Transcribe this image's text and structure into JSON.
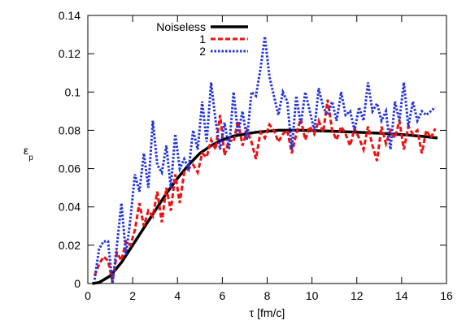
{
  "chart_data": {
    "type": "line",
    "title": "",
    "xlabel": "τ [fm/c]",
    "ylabel": "ε",
    "ylabel_subscript": "p",
    "xlim": [
      0,
      16
    ],
    "ylim": [
      0,
      0.14
    ],
    "xticks": [
      "0",
      "2",
      "4",
      "6",
      "8",
      "10",
      "12",
      "14",
      "16"
    ],
    "yticks": [
      "0",
      "0.02",
      "0.04",
      "0.06",
      "0.08",
      "0.1",
      "0.12",
      "0.14"
    ],
    "grid": false,
    "legend_position": "top-left",
    "series": [
      {
        "name": "Noiseless",
        "color": "#000000",
        "style": "solid",
        "x": [
          0.2,
          0.5,
          1.0,
          1.5,
          2.0,
          2.5,
          3.0,
          3.5,
          4.0,
          4.5,
          5.0,
          5.5,
          6.0,
          6.5,
          7.0,
          7.5,
          8.0,
          8.5,
          9.0,
          9.5,
          10.0,
          11.0,
          12.0,
          13.0,
          14.0,
          15.0,
          15.6
        ],
        "y": [
          0.0,
          0.0005,
          0.004,
          0.011,
          0.02,
          0.029,
          0.038,
          0.047,
          0.055,
          0.062,
          0.068,
          0.072,
          0.075,
          0.077,
          0.078,
          0.079,
          0.0795,
          0.08,
          0.08,
          0.08,
          0.0799,
          0.0795,
          0.079,
          0.0785,
          0.0778,
          0.0768,
          0.076
        ]
      },
      {
        "name": "1",
        "color": "#ee1111",
        "style": "dashed",
        "x": [
          0.3,
          0.5,
          0.7,
          0.9,
          1.1,
          1.3,
          1.5,
          1.7,
          1.9,
          2.1,
          2.3,
          2.5,
          2.7,
          2.9,
          3.1,
          3.3,
          3.5,
          3.7,
          3.9,
          4.1,
          4.3,
          4.5,
          4.7,
          4.9,
          5.1,
          5.3,
          5.5,
          5.7,
          5.9,
          6.1,
          6.3,
          6.5,
          6.7,
          6.9,
          7.1,
          7.3,
          7.5,
          7.7,
          7.9,
          8.1,
          8.3,
          8.5,
          8.7,
          8.9,
          9.1,
          9.3,
          9.5,
          9.7,
          9.9,
          10.1,
          10.3,
          10.5,
          10.7,
          10.9,
          11.1,
          11.3,
          11.5,
          11.7,
          11.9,
          12.1,
          12.3,
          12.5,
          12.7,
          12.9,
          13.1,
          13.3,
          13.5,
          13.7,
          13.9,
          14.1,
          14.3,
          14.5,
          14.7,
          14.9,
          15.1,
          15.3,
          15.5
        ],
        "y": [
          0.004,
          0.01,
          0.014,
          0.012,
          0.001,
          0.016,
          0.012,
          0.022,
          0.02,
          0.028,
          0.042,
          0.03,
          0.038,
          0.035,
          0.048,
          0.032,
          0.05,
          0.038,
          0.057,
          0.042,
          0.058,
          0.06,
          0.062,
          0.058,
          0.068,
          0.066,
          0.075,
          0.07,
          0.088,
          0.067,
          0.075,
          0.074,
          0.085,
          0.072,
          0.08,
          0.074,
          0.065,
          0.079,
          0.076,
          0.083,
          0.08,
          0.074,
          0.078,
          0.08,
          0.068,
          0.078,
          0.086,
          0.075,
          0.082,
          0.078,
          0.085,
          0.079,
          0.096,
          0.08,
          0.075,
          0.082,
          0.078,
          0.072,
          0.081,
          0.076,
          0.07,
          0.082,
          0.072,
          0.064,
          0.082,
          0.073,
          0.08,
          0.076,
          0.085,
          0.07,
          0.082,
          0.078,
          0.08,
          0.068,
          0.08,
          0.076,
          0.081
        ]
      },
      {
        "name": "2",
        "color": "#2233dd",
        "style": "dotted",
        "x": [
          0.3,
          0.5,
          0.7,
          0.9,
          1.1,
          1.3,
          1.5,
          1.7,
          1.9,
          2.1,
          2.3,
          2.5,
          2.7,
          2.9,
          3.1,
          3.3,
          3.5,
          3.7,
          3.9,
          4.1,
          4.3,
          4.5,
          4.7,
          4.9,
          5.1,
          5.3,
          5.5,
          5.7,
          5.9,
          6.1,
          6.3,
          6.5,
          6.7,
          6.9,
          7.1,
          7.3,
          7.5,
          7.7,
          7.9,
          8.1,
          8.3,
          8.5,
          8.7,
          8.9,
          9.1,
          9.3,
          9.5,
          9.7,
          9.9,
          10.1,
          10.3,
          10.5,
          10.7,
          10.9,
          11.1,
          11.3,
          11.5,
          11.7,
          11.9,
          12.1,
          12.3,
          12.5,
          12.7,
          12.9,
          13.1,
          13.3,
          13.5,
          13.7,
          13.9,
          14.1,
          14.3,
          14.5,
          14.7,
          14.9,
          15.1,
          15.3,
          15.5
        ],
        "y": [
          0.002,
          0.018,
          0.022,
          0.022,
          0.0,
          0.02,
          0.042,
          0.015,
          0.034,
          0.057,
          0.048,
          0.068,
          0.05,
          0.085,
          0.062,
          0.058,
          0.072,
          0.05,
          0.078,
          0.06,
          0.065,
          0.06,
          0.08,
          0.07,
          0.095,
          0.074,
          0.105,
          0.085,
          0.07,
          0.084,
          0.07,
          0.1,
          0.078,
          0.09,
          0.075,
          0.1,
          0.098,
          0.112,
          0.129,
          0.108,
          0.098,
          0.088,
          0.1,
          0.095,
          0.07,
          0.098,
          0.083,
          0.1,
          0.09,
          0.08,
          0.102,
          0.092,
          0.088,
          0.095,
          0.085,
          0.1,
          0.088,
          0.09,
          0.08,
          0.092,
          0.085,
          0.105,
          0.09,
          0.094,
          0.085,
          0.09,
          0.07,
          0.095,
          0.085,
          0.105,
          0.082,
          0.095,
          0.085,
          0.09,
          0.088,
          0.09,
          0.092
        ]
      }
    ]
  }
}
